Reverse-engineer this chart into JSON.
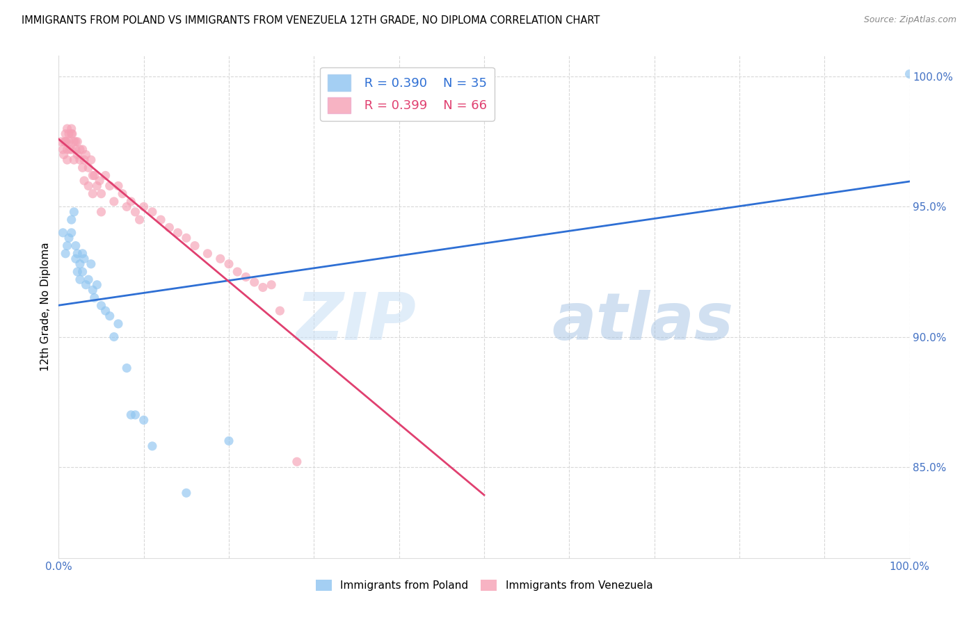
{
  "title": "IMMIGRANTS FROM POLAND VS IMMIGRANTS FROM VENEZUELA 12TH GRADE, NO DIPLOMA CORRELATION CHART",
  "source": "Source: ZipAtlas.com",
  "ylabel": "12th Grade, No Diploma",
  "ytick_labels": [
    "100.0%",
    "95.0%",
    "90.0%",
    "85.0%"
  ],
  "ytick_values": [
    1.0,
    0.95,
    0.9,
    0.85
  ],
  "xlim": [
    0.0,
    1.0
  ],
  "ylim": [
    0.815,
    1.008
  ],
  "poland_color": "#8EC4F0",
  "venezuela_color": "#F5A0B5",
  "poland_line_color": "#2E6FD4",
  "venezuela_line_color": "#E04070",
  "legend_poland_R": "0.390",
  "legend_poland_N": "35",
  "legend_venezuela_R": "0.399",
  "legend_venezuela_N": "66",
  "watermark_zip": "ZIP",
  "watermark_atlas": "atlas",
  "poland_scatter_x": [
    0.005,
    0.008,
    0.01,
    0.012,
    0.015,
    0.015,
    0.018,
    0.02,
    0.02,
    0.022,
    0.022,
    0.025,
    0.025,
    0.028,
    0.028,
    0.03,
    0.032,
    0.035,
    0.038,
    0.04,
    0.042,
    0.045,
    0.05,
    0.055,
    0.06,
    0.065,
    0.07,
    0.08,
    0.085,
    0.09,
    0.1,
    0.11,
    0.15,
    0.2,
    1.0
  ],
  "poland_scatter_y": [
    0.94,
    0.932,
    0.935,
    0.938,
    0.94,
    0.945,
    0.948,
    0.935,
    0.93,
    0.932,
    0.925,
    0.928,
    0.922,
    0.932,
    0.925,
    0.93,
    0.92,
    0.922,
    0.928,
    0.918,
    0.915,
    0.92,
    0.912,
    0.91,
    0.908,
    0.9,
    0.905,
    0.888,
    0.87,
    0.87,
    0.868,
    0.858,
    0.84,
    0.86,
    1.001
  ],
  "venezuela_scatter_x": [
    0.003,
    0.005,
    0.006,
    0.007,
    0.008,
    0.008,
    0.009,
    0.01,
    0.01,
    0.01,
    0.012,
    0.012,
    0.013,
    0.015,
    0.015,
    0.015,
    0.016,
    0.018,
    0.018,
    0.02,
    0.02,
    0.022,
    0.022,
    0.025,
    0.025,
    0.028,
    0.028,
    0.03,
    0.03,
    0.032,
    0.035,
    0.035,
    0.038,
    0.04,
    0.04,
    0.042,
    0.045,
    0.048,
    0.05,
    0.05,
    0.055,
    0.06,
    0.065,
    0.07,
    0.075,
    0.08,
    0.085,
    0.09,
    0.095,
    0.1,
    0.11,
    0.12,
    0.13,
    0.14,
    0.15,
    0.16,
    0.175,
    0.19,
    0.2,
    0.21,
    0.22,
    0.23,
    0.24,
    0.25,
    0.26,
    0.28
  ],
  "venezuela_scatter_y": [
    0.975,
    0.972,
    0.97,
    0.975,
    0.975,
    0.978,
    0.975,
    0.98,
    0.972,
    0.968,
    0.978,
    0.975,
    0.972,
    0.98,
    0.978,
    0.972,
    0.978,
    0.975,
    0.968,
    0.975,
    0.972,
    0.975,
    0.97,
    0.972,
    0.968,
    0.972,
    0.965,
    0.968,
    0.96,
    0.97,
    0.965,
    0.958,
    0.968,
    0.962,
    0.955,
    0.962,
    0.958,
    0.96,
    0.955,
    0.948,
    0.962,
    0.958,
    0.952,
    0.958,
    0.955,
    0.95,
    0.952,
    0.948,
    0.945,
    0.95,
    0.948,
    0.945,
    0.942,
    0.94,
    0.938,
    0.935,
    0.932,
    0.93,
    0.928,
    0.925,
    0.923,
    0.921,
    0.919,
    0.92,
    0.91,
    0.852
  ]
}
